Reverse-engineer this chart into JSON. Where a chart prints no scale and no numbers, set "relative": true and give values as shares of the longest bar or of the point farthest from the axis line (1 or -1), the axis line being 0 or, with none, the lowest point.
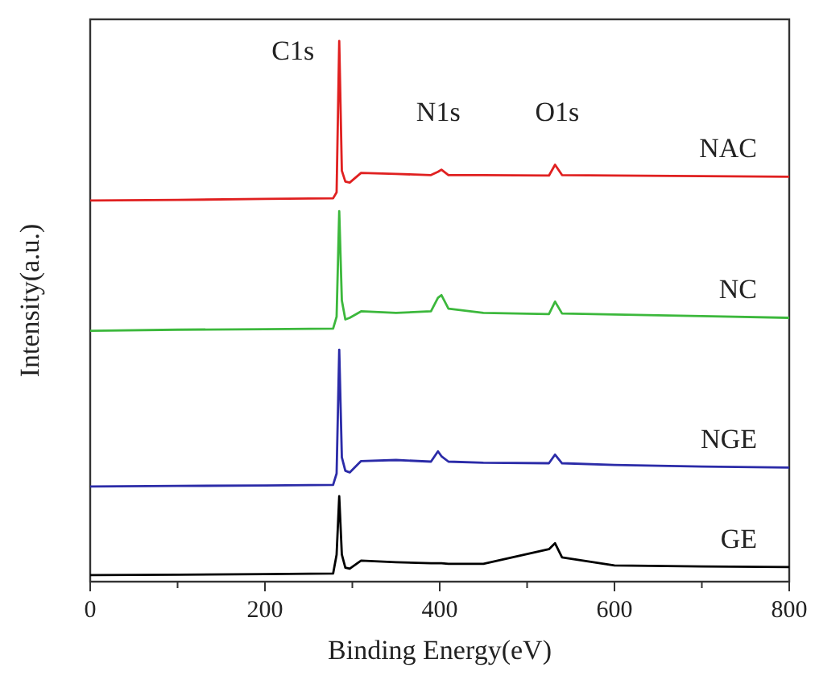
{
  "chart_data": {
    "type": "line",
    "relative": true,
    "xlabel": "Binding Energy(eV)",
    "ylabel": "Intensity(a.u.)",
    "x": [
      0,
      100,
      200,
      278,
      282,
      285,
      288,
      292,
      297,
      310,
      350,
      390,
      398,
      402,
      410,
      450,
      525,
      532,
      540,
      600,
      700,
      800
    ],
    "xlim": [
      0,
      800
    ],
    "xticks": [
      0,
      {
        "value": 100,
        "label": null
      },
      200,
      {
        "value": 300,
        "label": null
      },
      400,
      {
        "value": 500,
        "label": null
      },
      600,
      {
        "value": 700,
        "label": null
      },
      800
    ],
    "series": [
      {
        "name": "NAC",
        "color": "#e02020",
        "values": [
          0.705,
          0.706,
          0.708,
          0.709,
          0.72,
          1,
          0.76,
          0.74,
          0.738,
          0.756,
          0.754,
          0.752,
          0.758,
          0.762,
          0.752,
          0.752,
          0.751,
          0.771,
          0.752,
          0.751,
          0.75,
          0.749
        ]
      },
      {
        "name": "NC",
        "color": "#3cb83c",
        "values": [
          0.464,
          0.466,
          0.467,
          0.468,
          0.49,
          0.685,
          0.52,
          0.485,
          0.488,
          0.5,
          0.497,
          0.5,
          0.525,
          0.53,
          0.505,
          0.497,
          0.495,
          0.518,
          0.496,
          0.494,
          0.491,
          0.488
        ]
      },
      {
        "name": "NGE",
        "color": "#2b2ba8",
        "values": [
          0.176,
          0.177,
          0.178,
          0.179,
          0.2,
          0.429,
          0.23,
          0.205,
          0.202,
          0.223,
          0.225,
          0.222,
          0.241,
          0.232,
          0.222,
          0.22,
          0.219,
          0.235,
          0.219,
          0.216,
          0.213,
          0.211
        ]
      },
      {
        "name": "GE",
        "color": "#000000",
        "values": [
          0.012,
          0.013,
          0.014,
          0.015,
          0.05,
          0.158,
          0.05,
          0.026,
          0.024,
          0.039,
          0.036,
          0.034,
          0.034,
          0.034,
          0.033,
          0.033,
          0.06,
          0.071,
          0.045,
          0.03,
          0.028,
          0.027
        ]
      }
    ],
    "annotations": [
      "C1s",
      "N1s",
      "O1s"
    ]
  }
}
